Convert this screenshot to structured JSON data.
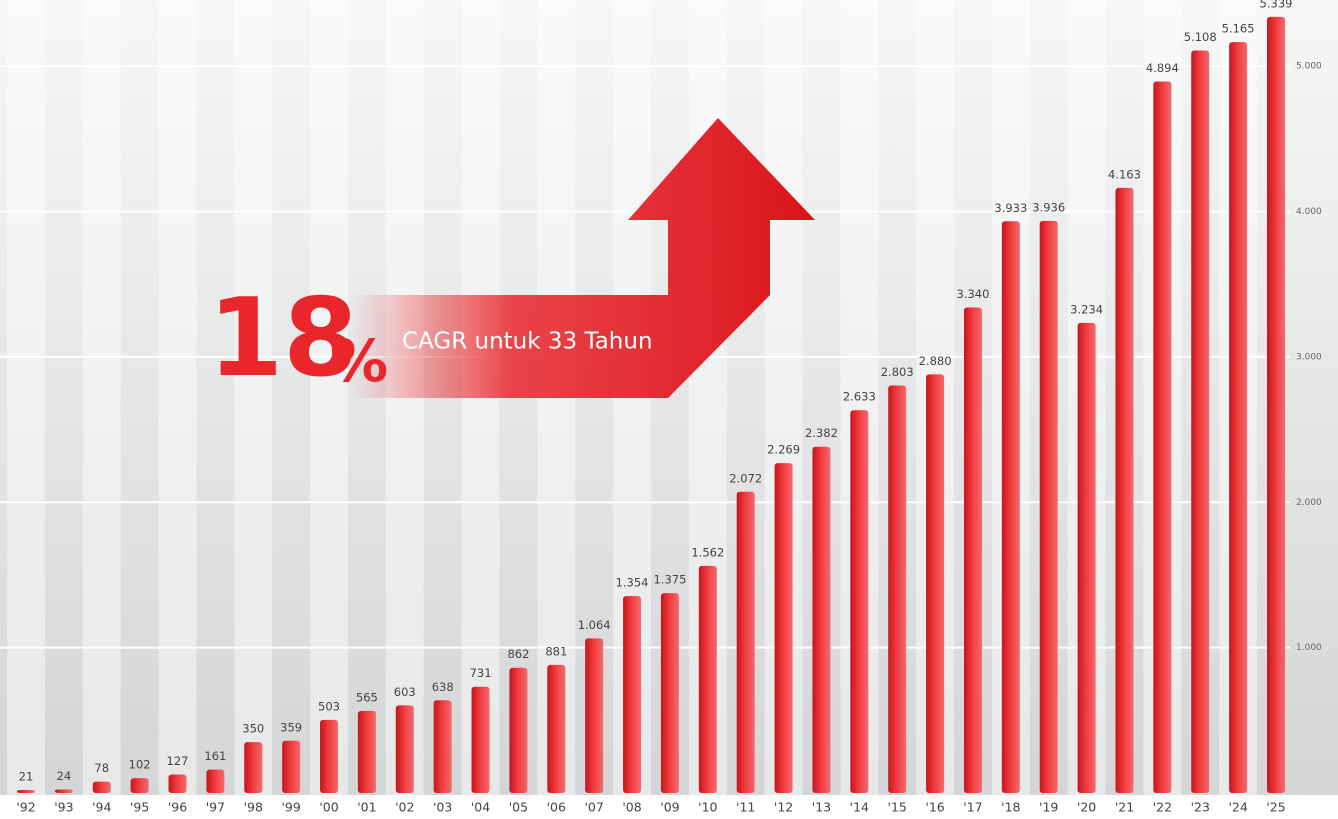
{
  "chart_data": {
    "type": "bar",
    "categories": [
      "'92",
      "'93",
      "'94",
      "'95",
      "'96",
      "'97",
      "'98",
      "'99",
      "'00",
      "'01",
      "'02",
      "'03",
      "'04",
      "'05",
      "'06",
      "'07",
      "'08",
      "'09",
      "'10",
      "'11",
      "'12",
      "'13",
      "'14",
      "'15",
      "'16",
      "'17",
      "'18",
      "'19",
      "'20",
      "'21",
      "'22",
      "'23",
      "'24",
      "'25"
    ],
    "values": [
      21,
      24,
      78,
      102,
      127,
      161,
      350,
      359,
      503,
      565,
      603,
      638,
      731,
      862,
      881,
      1064,
      1354,
      1375,
      1562,
      2072,
      2269,
      2382,
      2633,
      2803,
      2880,
      3340,
      3933,
      3936,
      3234,
      4163,
      4894,
      5108,
      5165,
      5339
    ],
    "value_labels": [
      "21",
      "24",
      "78",
      "102",
      "127",
      "161",
      "350",
      "359",
      "503",
      "565",
      "603",
      "638",
      "731",
      "862",
      "881",
      "1.064",
      "1.354",
      "1.375",
      "1.562",
      "2.072",
      "2.269",
      "2.382",
      "2.633",
      "2.803",
      "2.880",
      "3.340",
      "3.933",
      "3.936",
      "3.234",
      "4.163",
      "4.894",
      "5.108",
      "5.165",
      "5.339"
    ],
    "color": "#e8262b",
    "ylim": [
      0,
      5400
    ],
    "yticks": [
      {
        "value": 1000,
        "label": "1.000"
      },
      {
        "value": 2000,
        "label": "2.000"
      },
      {
        "value": 3000,
        "label": "3.000"
      },
      {
        "value": 4000,
        "label": "4.000"
      },
      {
        "value": 5000,
        "label": "5.000"
      }
    ],
    "grid": true,
    "annotation": {
      "value": "18",
      "unit": "%",
      "text": "CAGR untuk 33 Tahun"
    }
  }
}
